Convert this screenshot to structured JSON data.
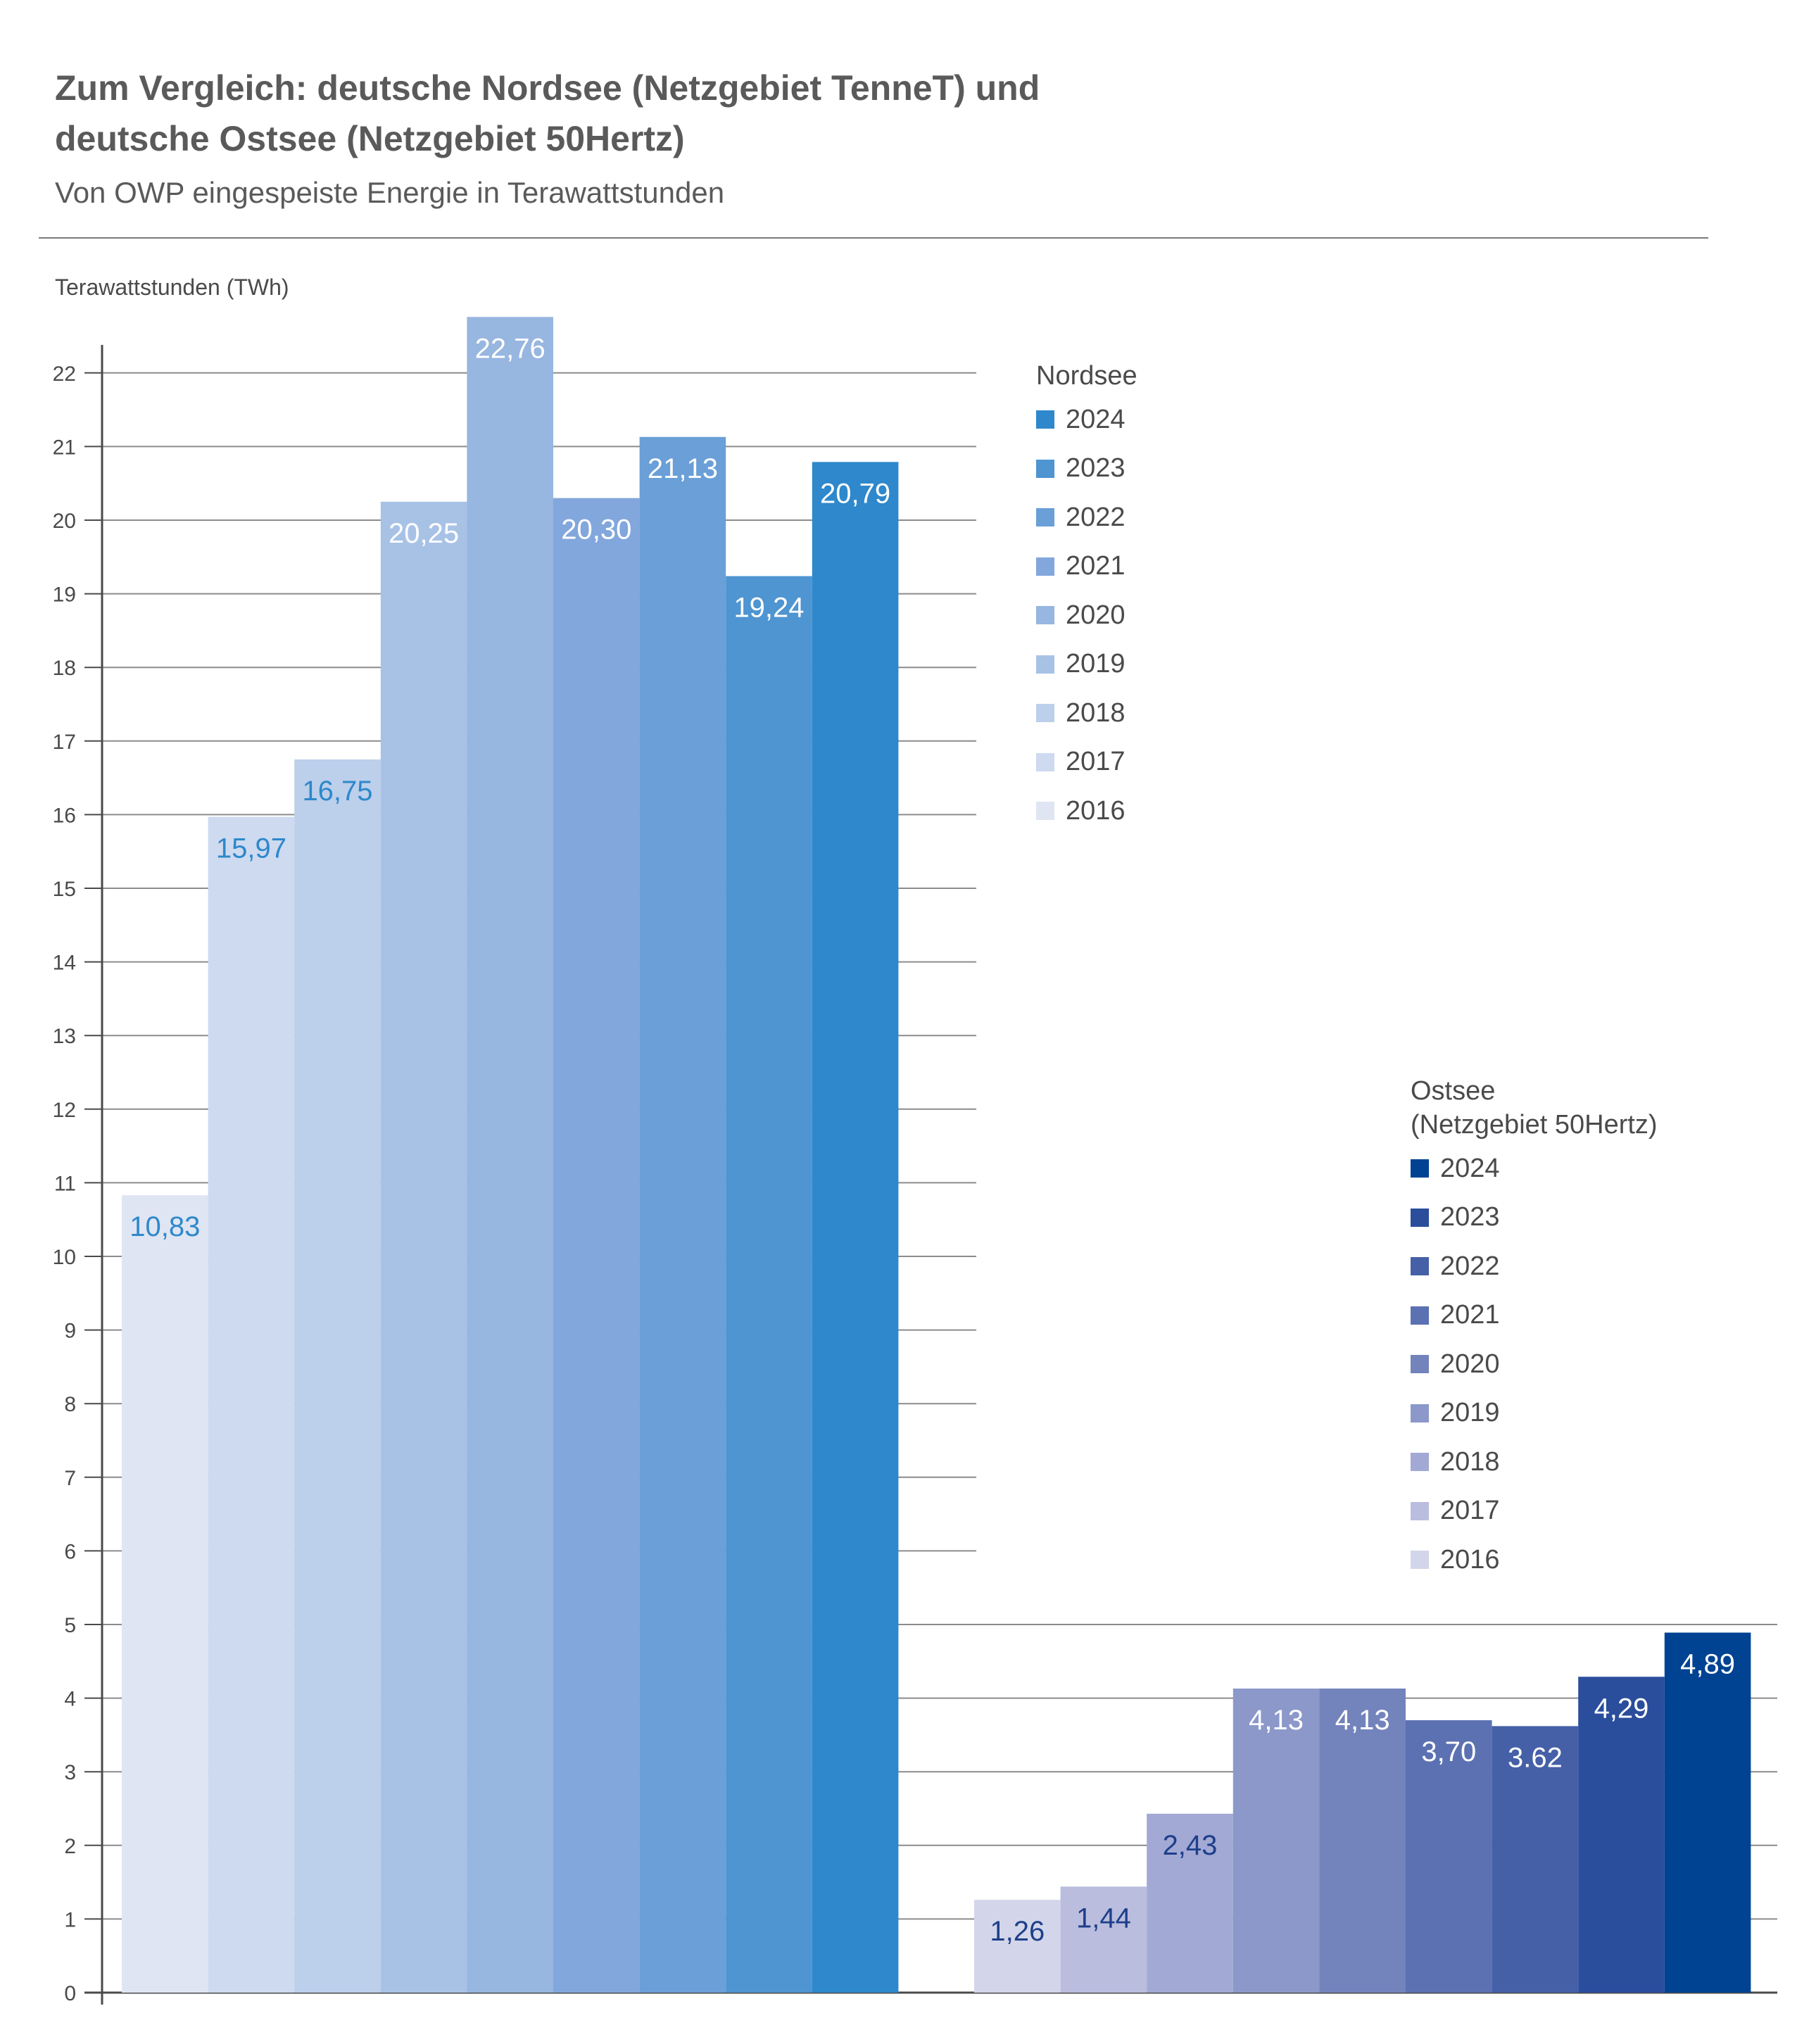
{
  "title_line1": "Zum Vergleich: deutsche Nordsee (Netzgebiet TenneT) und",
  "title_line2": "deutsche Ostsee (Netzgebiet 50Hertz)",
  "subtitle": "Von OWP eingespeiste Energie in Terawattstunden",
  "chart_data": {
    "type": "bar",
    "ylabel": "Terawattstunden (TWh)",
    "ylim": [
      0,
      22
    ],
    "yticks": [
      "0",
      "1",
      "2",
      "3",
      "4",
      "5",
      "6",
      "7",
      "8",
      "9",
      "10",
      "11",
      "12",
      "13",
      "14",
      "15",
      "16",
      "17",
      "18",
      "19",
      "20",
      "21",
      "22"
    ],
    "grid": true,
    "groups": [
      {
        "name": "Nordsee",
        "legend_title": [
          "Nordsee"
        ],
        "legend_position": "top-right of group",
        "categories": [
          "2016",
          "2017",
          "2018",
          "2019",
          "2020",
          "2021",
          "2022",
          "2023",
          "2024"
        ],
        "values": [
          10.83,
          15.97,
          16.75,
          20.25,
          22.76,
          20.3,
          21.13,
          19.24,
          20.79
        ],
        "labels": [
          "10,83",
          "15,97",
          "16,75",
          "20,25",
          "22,76",
          "20,30",
          "21,13",
          "19,24",
          "20,79"
        ],
        "colors": [
          "#dfe5f3",
          "#cddaf0",
          "#bccfeb",
          "#a8c2e6",
          "#97b6e0",
          "#82a7dc",
          "#6a9fd7",
          "#4e95d1",
          "#2e88cb"
        ],
        "label_colors": [
          "#2e88cb",
          "#2e88cb",
          "#2e88cb",
          "#ffffff",
          "#ffffff",
          "#ffffff",
          "#ffffff",
          "#ffffff",
          "#ffffff"
        ]
      },
      {
        "name": "Ostsee (Netzgebiet 50Hertz)",
        "legend_title": [
          "Ostsee",
          "(Netzgebiet 50Hertz)"
        ],
        "legend_position": "right, above bars",
        "categories": [
          "2016",
          "2017",
          "2018",
          "2019",
          "2020",
          "2021",
          "2022",
          "2023",
          "2024"
        ],
        "values": [
          1.26,
          1.44,
          2.43,
          4.13,
          4.13,
          3.7,
          3.62,
          4.29,
          4.89
        ],
        "labels": [
          "1,26",
          "1,44",
          "2,43",
          "4,13",
          "4,13",
          "3,70",
          "3.62",
          "4,29",
          "4,89"
        ],
        "colors": [
          "#d3d6ea",
          "#babdde",
          "#a2a9d4",
          "#8b98c9",
          "#7383bc",
          "#5c71b2",
          "#4560a7",
          "#2a4e9c",
          "#004392"
        ],
        "label_colors": [
          "#1e3f8a",
          "#1e3f8a",
          "#1e3f8a",
          "#ffffff",
          "#ffffff",
          "#ffffff",
          "#ffffff",
          "#ffffff",
          "#ffffff"
        ]
      }
    ]
  }
}
